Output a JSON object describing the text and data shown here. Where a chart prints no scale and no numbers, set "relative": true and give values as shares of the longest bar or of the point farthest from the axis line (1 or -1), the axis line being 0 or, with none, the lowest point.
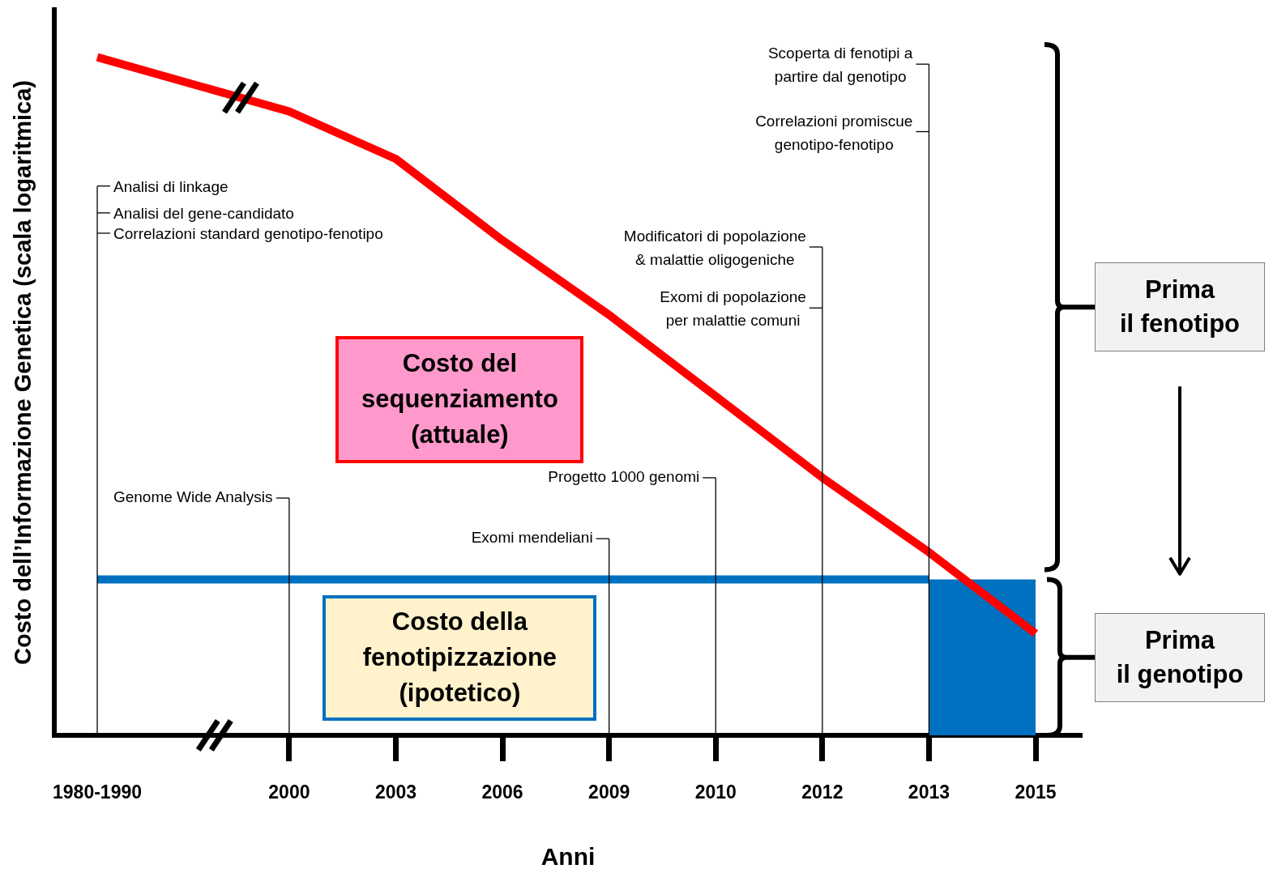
{
  "chart_data": {
    "type": "line",
    "relative": true,
    "xlabel": "Anni",
    "ylabel": "Costo dell’Informazione Genetica (scala logaritmica)",
    "categories": [
      "1980-1990",
      "2000",
      "2003",
      "2006",
      "2009",
      "2010",
      "2012",
      "2013",
      "2015"
    ],
    "series": [
      {
        "name": "Costo del\nsequenziamento\n(attuale)",
        "color": "#ff0000",
        "values": [
          1,
          0.92,
          0.85,
          0.73,
          0.62,
          0.5,
          0.38,
          0.27,
          0.15
        ]
      },
      {
        "name": "Costo della\nfenotipizzazione\n(ipotetico)",
        "color": "#0070c0",
        "values": [
          0.23,
          0.23,
          0.23,
          0.23,
          0.23,
          0.23,
          0.23,
          0.23,
          null
        ]
      },
      {
        "type": "area",
        "color": "#0070c0",
        "values": [
          null,
          null,
          null,
          null,
          null,
          null,
          null,
          0.23,
          0.23
        ]
      }
    ],
    "ref_lines": [
      {
        "axis": "x",
        "value": "1980-1990"
      },
      {
        "axis": "x",
        "value": "2000",
        "label": "Genome Wide Analysis"
      },
      {
        "axis": "x",
        "value": "2009",
        "label": "Exomi mendeliani"
      },
      {
        "axis": "x",
        "value": "2010",
        "label": "Progetto 1000 genomi"
      },
      {
        "axis": "x",
        "value": "2012",
        "label": "Modificatori di popolazione\n& malattie oligogeniche"
      },
      {
        "axis": "x",
        "value": "2013",
        "label": "Scoperta di fenotipi a\npartire dal genotipo"
      }
    ],
    "annotations": [
      "Prima\nil fenotipo",
      "Prima\nil genotipo",
      "Analisi di linkage",
      "Analisi del gene-candidato",
      "Correlazioni standard genotipo-fenotipo",
      "Exomi di popolazione\nper malattie comuni",
      "Correlazioni promiscue\ngenotipo-fenotipo"
    ],
    "marker": "none",
    "line_style": "solid"
  }
}
